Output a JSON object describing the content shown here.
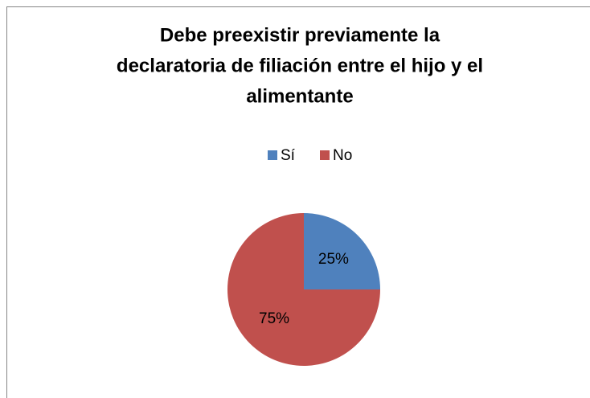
{
  "chart_data": {
    "type": "pie",
    "title": [
      "Debe preexistir previamente la",
      "declaratoria de filiación entre el hijo y el",
      "alimentante"
    ],
    "categories": [
      "Sí",
      "No"
    ],
    "values": [
      25,
      75
    ],
    "value_labels": [
      "25%",
      "75%"
    ],
    "colors": [
      "#4f81bd",
      "#c0504d"
    ],
    "legend": "top"
  }
}
